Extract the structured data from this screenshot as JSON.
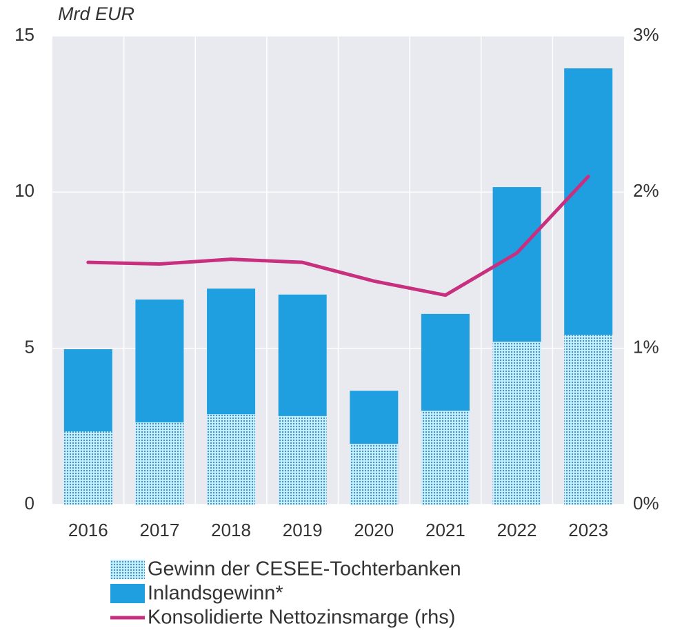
{
  "chart_data": {
    "type": "bar",
    "stacked": true,
    "y_axis_label": "Mrd EUR",
    "categories": [
      "2016",
      "2017",
      "2018",
      "2019",
      "2020",
      "2021",
      "2022",
      "2023"
    ],
    "series": [
      {
        "name": "Gewinn der CESEE-Tochterbanken",
        "type": "bar",
        "color": "#1f9fe0",
        "pattern": "dotted",
        "values": [
          2.34,
          2.63,
          2.89,
          2.83,
          1.94,
          3.0,
          5.21,
          5.43
        ]
      },
      {
        "name": "Inlandsgewinn*",
        "type": "bar",
        "color": "#1f9fe0",
        "values": [
          2.63,
          3.93,
          4.02,
          3.89,
          1.7,
          3.1,
          4.95,
          8.53
        ]
      },
      {
        "name": "Konsolidierte Nettozinsmarge (rhs)",
        "type": "line",
        "axis": "y2",
        "color": "#c8307f",
        "values": [
          1.55,
          1.54,
          1.57,
          1.55,
          1.43,
          1.34,
          1.61,
          2.1
        ]
      }
    ],
    "ylim": [
      0,
      15
    ],
    "yticks": [
      0,
      5,
      10,
      15
    ],
    "y2lim": [
      0,
      3
    ],
    "y2ticks": [
      {
        "value": 0,
        "label": "0%"
      },
      {
        "value": 1,
        "label": "1%"
      },
      {
        "value": 2,
        "label": "2%"
      },
      {
        "value": 3,
        "label": "3%"
      }
    ],
    "grid": true
  }
}
